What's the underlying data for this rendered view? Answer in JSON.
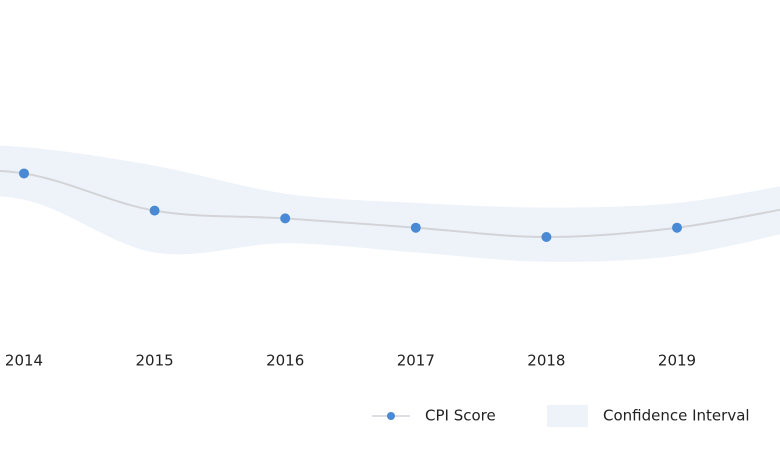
{
  "chart_data": {
    "type": "line",
    "categories": [
      null,
      "2014",
      "2015",
      "2016",
      "2017",
      "2018",
      "2019",
      null
    ],
    "series": [
      {
        "name": "CPI Score",
        "color": "#4a8ad4",
        "line_color": "#d4d4d8",
        "values": [
          40.3,
          40.1,
          37.7,
          37.2,
          36.6,
          36.0,
          36.6,
          38.1
        ]
      }
    ],
    "band": {
      "name": "Confidence Interval",
      "color": "#eef3fa",
      "upper": [
        42.0,
        41.8,
        40.6,
        38.8,
        38.2,
        37.9,
        38.2,
        39.6
      ],
      "lower": [
        38.6,
        38.4,
        35.0,
        35.6,
        35.0,
        34.4,
        34.8,
        36.6
      ]
    },
    "ylim": [
      30,
      50
    ],
    "legend": "bottom-right"
  }
}
